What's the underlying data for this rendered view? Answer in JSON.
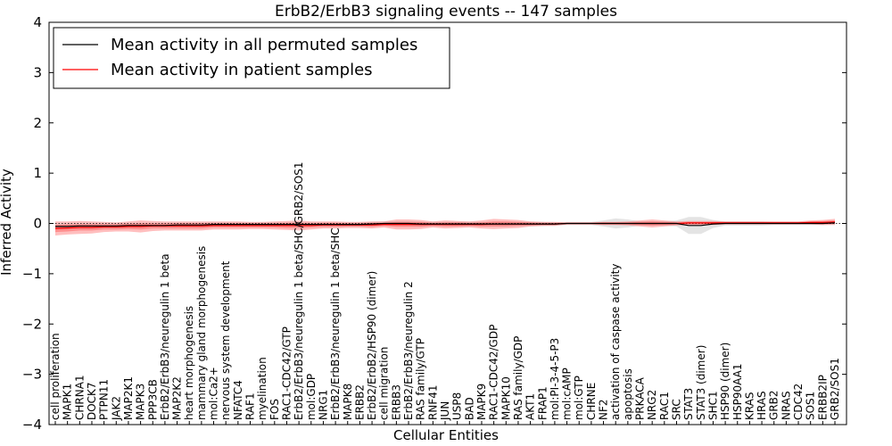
{
  "chart_data": {
    "type": "line",
    "title": "ErbB2/ErbB3 signaling events -- 147 samples",
    "xlabel": "Cellular Entities",
    "ylabel": "Inferred Activity",
    "ylim": [
      -4,
      4
    ],
    "yticks": [
      -4,
      -3,
      -2,
      -1,
      0,
      1,
      2,
      3,
      4
    ],
    "ytick_labels": [
      "−4",
      "−3",
      "−2",
      "−1",
      "0",
      "1",
      "2",
      "3",
      "4"
    ],
    "legend": {
      "position": "top-left",
      "entries": [
        {
          "label": "Mean activity in all permuted samples",
          "color": "#000000"
        },
        {
          "label": "Mean activity in patient samples",
          "color": "#ff0000"
        }
      ]
    },
    "categories": [
      "cell proliferation",
      "MAPK1",
      "CHRNA1",
      "DOCK7",
      "PTPN11",
      "JAK2",
      "MAP2K1",
      "MAPK3",
      "PPP3CB",
      "ErbB2/ErbB3/neuregulin 1 beta",
      "MAP2K2",
      "heart morphogenesis",
      "mammary gland morphogenesis",
      "mol:Ca2+",
      "nervous system development",
      "NFATC4",
      "RAF1",
      "myelination",
      "FOS",
      "RAC1-CDC42/GTP",
      "ErbB2/ErbB3/neuregulin 1 beta/SHC/GRB2/SOS1",
      "mol:GDP",
      "NRG1",
      "ErbB2/ErbB3/neuregulin 1 beta/SHC",
      "MAPK8",
      "ERBB2",
      "ErbB2/ErbB2/HSP90 (dimer)",
      "cell migration",
      "ERBB3",
      "ErbB2/ErbB3/neuregulin 2",
      "RAS family/GTP",
      "RNF41",
      "JUN",
      "USP8",
      "BAD",
      "MAPK9",
      "RAC1-CDC42/GDP",
      "MAPK10",
      "RAS family/GDP",
      "AKT1",
      "FRAP1",
      "mol:PI-3-4-5-P3",
      "mol:cAMP",
      "mol:GTP",
      "CHRNE",
      "NF2",
      "activation of caspase activity",
      "apoptosis",
      "PRKACA",
      "NRG2",
      "RAC1",
      "SRC",
      "STAT3",
      "STAT3 (dimer)",
      "SHC1",
      "HSP90 (dimer)",
      "HSP90AA1",
      "KRAS",
      "HRAS",
      "GRB2",
      "NRAS",
      "CDC42",
      "SOS1",
      "ERBB2IP",
      "GRB2/SOS1"
    ],
    "series": [
      {
        "name": "Mean activity in patient samples",
        "color": "#ff0000",
        "values": [
          -0.1,
          -0.09,
          -0.08,
          -0.08,
          -0.07,
          -0.07,
          -0.06,
          -0.06,
          -0.05,
          -0.05,
          -0.05,
          -0.05,
          -0.05,
          -0.04,
          -0.04,
          -0.04,
          -0.04,
          -0.04,
          -0.04,
          -0.04,
          -0.04,
          -0.04,
          -0.03,
          -0.03,
          -0.03,
          -0.03,
          -0.03,
          -0.02,
          -0.02,
          -0.02,
          -0.02,
          -0.02,
          -0.02,
          -0.02,
          -0.02,
          -0.02,
          -0.01,
          -0.01,
          -0.01,
          -0.01,
          -0.01,
          -0.01,
          0,
          0,
          0,
          0,
          0,
          0,
          0,
          0,
          0,
          0,
          0.01,
          0.01,
          0.01,
          0.01,
          0.01,
          0.01,
          0.01,
          0.01,
          0.01,
          0.01,
          0.02,
          0.02,
          0.03
        ],
        "band_outer": [
          0.14,
          0.13,
          0.13,
          0.12,
          0.1,
          0.09,
          0.1,
          0.12,
          0.1,
          0.09,
          0.09,
          0.09,
          0.09,
          0.08,
          0.08,
          0.08,
          0.07,
          0.07,
          0.08,
          0.09,
          0.1,
          0.08,
          0.07,
          0.07,
          0.06,
          0.06,
          0.07,
          0.06,
          0.1,
          0.1,
          0.09,
          0.06,
          0.08,
          0.07,
          0.06,
          0.08,
          0.1,
          0.09,
          0.08,
          0.05,
          0.04,
          0.04,
          0.02,
          0.02,
          0.02,
          0.03,
          0.03,
          0.04,
          0.06,
          0.08,
          0.06,
          0.04,
          0.04,
          0.04,
          0.04,
          0.03,
          0.03,
          0.03,
          0.03,
          0.03,
          0.03,
          0.03,
          0.04,
          0.05,
          0.06
        ],
        "band_inner": [
          0.07,
          0.07,
          0.06,
          0.06,
          0.05,
          0.05,
          0.05,
          0.06,
          0.05,
          0.05,
          0.05,
          0.05,
          0.05,
          0.04,
          0.04,
          0.04,
          0.04,
          0.04,
          0.04,
          0.05,
          0.05,
          0.04,
          0.04,
          0.04,
          0.03,
          0.03,
          0.04,
          0.03,
          0.05,
          0.05,
          0.05,
          0.03,
          0.04,
          0.04,
          0.03,
          0.04,
          0.05,
          0.05,
          0.04,
          0.03,
          0.02,
          0.02,
          0.01,
          0.01,
          0.01,
          0.02,
          0.02,
          0.02,
          0.03,
          0.04,
          0.03,
          0.02,
          0.02,
          0.02,
          0.02,
          0.02,
          0.02,
          0.02,
          0.02,
          0.02,
          0.02,
          0.02,
          0.02,
          0.03,
          0.03
        ]
      },
      {
        "name": "Mean activity in all permuted samples",
        "color": "#000000",
        "values": [
          -0.06,
          -0.06,
          -0.05,
          -0.05,
          -0.05,
          -0.05,
          -0.04,
          -0.04,
          -0.04,
          -0.04,
          -0.03,
          -0.03,
          -0.03,
          -0.02,
          -0.02,
          -0.02,
          -0.02,
          -0.02,
          -0.02,
          -0.02,
          -0.02,
          -0.02,
          -0.02,
          -0.02,
          -0.02,
          -0.02,
          -0.01,
          0,
          0,
          0,
          -0.01,
          -0.01,
          -0.01,
          -0.01,
          -0.01,
          -0.01,
          -0.01,
          -0.01,
          -0.01,
          -0.01,
          -0.01,
          -0.01,
          0,
          0,
          0,
          0,
          0,
          0,
          0,
          0,
          0,
          0,
          -0.04,
          -0.04,
          -0.01,
          0,
          0,
          0,
          0,
          0,
          0,
          0,
          0,
          0,
          0.01
        ],
        "band": [
          0.04,
          0.04,
          0.04,
          0.04,
          0.04,
          0.04,
          0.04,
          0.04,
          0.04,
          0.04,
          0.04,
          0.04,
          0.04,
          0.04,
          0.04,
          0.04,
          0.04,
          0.04,
          0.04,
          0.04,
          0.04,
          0.04,
          0.04,
          0.04,
          0.04,
          0.04,
          0.04,
          0.04,
          0.04,
          0.04,
          0.04,
          0.04,
          0.04,
          0.04,
          0.04,
          0.04,
          0.04,
          0.04,
          0.04,
          0.04,
          0.04,
          0.03,
          0.03,
          0.03,
          0.03,
          0.06,
          0.1,
          0.08,
          0.04,
          0.04,
          0.04,
          0.06,
          0.17,
          0.17,
          0.08,
          0.04,
          0.04,
          0.04,
          0.04,
          0.03,
          0.03,
          0.03,
          0.03,
          0.03,
          0.03
        ]
      }
    ]
  }
}
